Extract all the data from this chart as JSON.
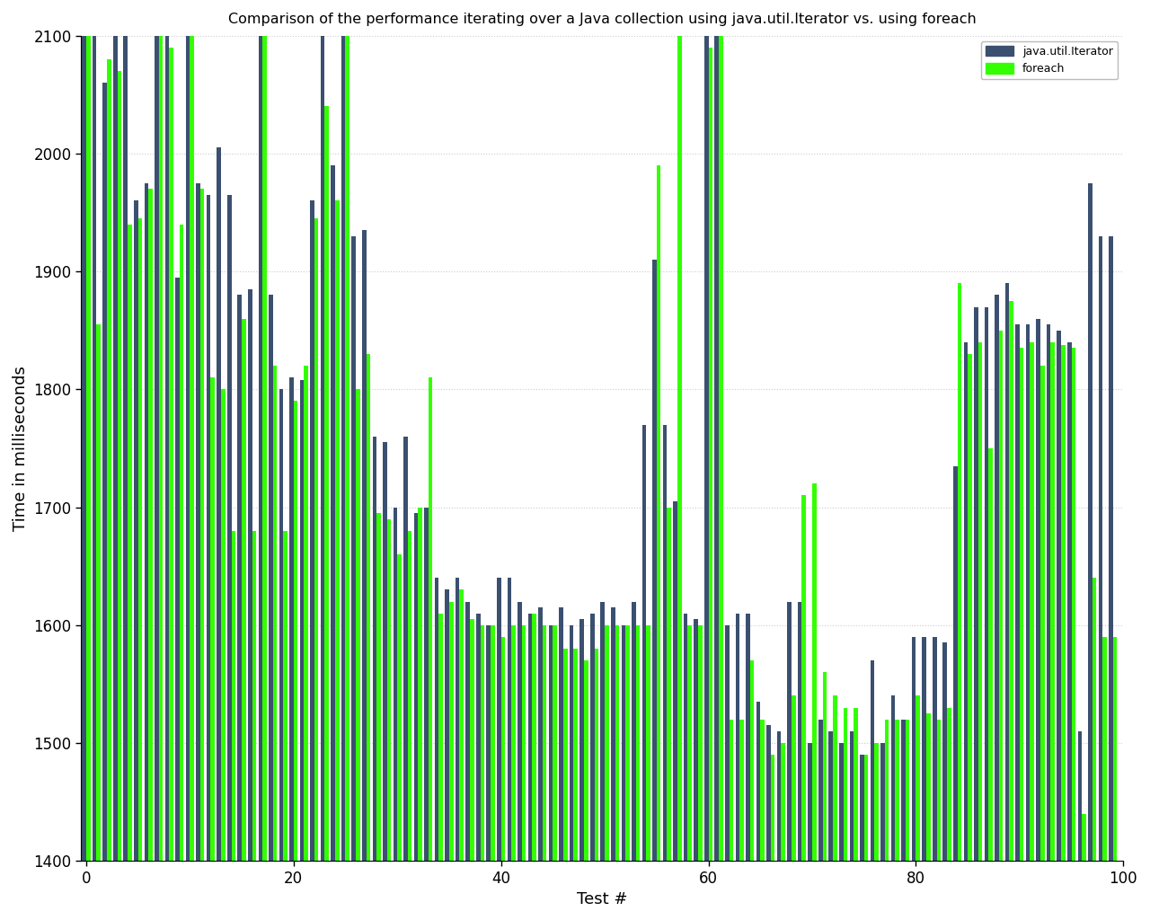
{
  "title": "Comparison of the performance iterating over a Java collection using java.util.Iterator vs. using foreach",
  "xlabel": "Test #",
  "ylabel": "Time in milliseconds",
  "ylim": [
    1400,
    2100
  ],
  "xlim": [
    -0.5,
    100
  ],
  "xticks": [
    0,
    20,
    40,
    60,
    80,
    100
  ],
  "yticks": [
    1400,
    1500,
    1600,
    1700,
    1800,
    1900,
    2000,
    2100
  ],
  "title_color": "#000000",
  "axis_label_color": "#000000",
  "tick_color": "#000000",
  "bar_width": 0.4,
  "bar_bottom": 1400,
  "iterator_color": "#3b5070",
  "foreach_color": "#33ff00",
  "background_color": "#ffffff",
  "grid_color": "#cccccc",
  "legend_labels": [
    "java.util.Iterator",
    "foreach"
  ],
  "iterator_values": [
    2100,
    2100,
    2060,
    2100,
    2100,
    1960,
    1975,
    2100,
    2100,
    1895,
    2100,
    1975,
    1965,
    2005,
    1965,
    1880,
    1885,
    2100,
    1880,
    1800,
    1810,
    1808,
    1960,
    2100,
    1990,
    2100,
    1930,
    1935,
    1760,
    1755,
    1700,
    1760,
    1695,
    1700,
    1640,
    1630,
    1640,
    1620,
    1610,
    1600,
    1640,
    1640,
    1620,
    1610,
    1615,
    1600,
    1615,
    1600,
    1605,
    1610,
    1620,
    1615,
    1600,
    1620,
    1770,
    1910,
    1770,
    1705,
    1610,
    1605,
    2100,
    2100,
    1600,
    1610,
    1610,
    1535,
    1515,
    1510,
    1620,
    1620,
    1500,
    1520,
    1510,
    1500,
    1510,
    1490,
    1570,
    1500,
    1540,
    1520,
    1590,
    1590,
    1590,
    1585,
    1735,
    1840,
    1870,
    1870,
    1880,
    1890,
    1855,
    1855,
    1860,
    1855,
    1850,
    1840,
    1510,
    1975,
    1930,
    1930
  ],
  "foreach_values": [
    2100,
    1855,
    2080,
    2070,
    1940,
    1945,
    1970,
    2100,
    2090,
    1940,
    2100,
    1970,
    1810,
    1800,
    1680,
    1860,
    1680,
    2100,
    1820,
    1680,
    1790,
    1820,
    1945,
    2040,
    1960,
    2100,
    1800,
    1830,
    1695,
    1690,
    1660,
    1680,
    1700,
    1810,
    1610,
    1620,
    1630,
    1605,
    1600,
    1600,
    1590,
    1600,
    1600,
    1610,
    1600,
    1600,
    1580,
    1580,
    1570,
    1580,
    1600,
    1600,
    1600,
    1600,
    1600,
    1990,
    1700,
    2100,
    1600,
    1600,
    2090,
    2100,
    1520,
    1520,
    1570,
    1520,
    1490,
    1500,
    1540,
    1710,
    1720,
    1560,
    1540,
    1530,
    1530,
    1490,
    1500,
    1520,
    1520,
    1520,
    1540,
    1525,
    1520,
    1530,
    1890,
    1830,
    1840,
    1750,
    1850,
    1875,
    1835,
    1840,
    1820,
    1840,
    1838,
    1835,
    1440,
    1640,
    1590,
    1590
  ]
}
